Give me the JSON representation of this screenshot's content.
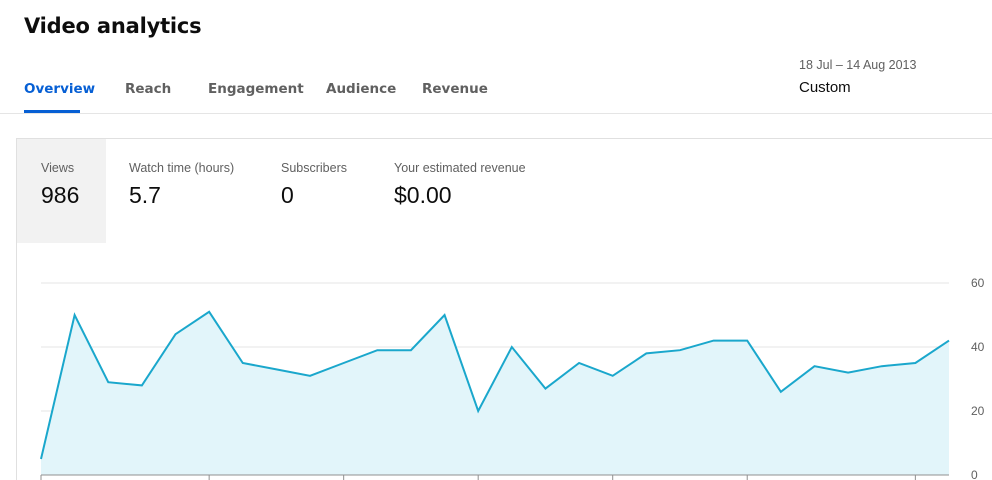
{
  "page": {
    "title": "Video analytics"
  },
  "tabs": [
    {
      "label": "Overview",
      "active": true
    },
    {
      "label": "Reach",
      "active": false
    },
    {
      "label": "Engagement",
      "active": false
    },
    {
      "label": "Audience",
      "active": false
    },
    {
      "label": "Revenue",
      "active": false
    }
  ],
  "period": {
    "date_range": "18 Jul – 14 Aug 2013",
    "selected": "Custom"
  },
  "metrics": [
    {
      "label": "Views",
      "value": "986",
      "selected": true
    },
    {
      "label": "Watch time (hours)",
      "value": "5.7",
      "selected": false
    },
    {
      "label": "Subscribers",
      "value": "0",
      "selected": false
    },
    {
      "label": "Your estimated revenue",
      "value": "$0.00",
      "selected": false
    }
  ],
  "colors": {
    "accent": "#065fd4",
    "line": "#1aa7cc",
    "area": "#e2f5fa",
    "grid": "#e5e5e5",
    "selected_metric_bg": "#f2f2f2"
  },
  "chart_data": {
    "type": "area",
    "x": [
      1,
      2,
      3,
      4,
      5,
      6,
      7,
      8,
      9,
      10,
      11,
      12,
      13,
      14,
      15,
      16,
      17,
      18,
      19,
      20,
      21,
      22,
      23,
      24,
      25,
      26,
      27,
      28
    ],
    "series": [
      {
        "values": [
          5,
          50,
          29,
          28,
          44,
          51,
          35,
          33,
          31,
          35,
          39,
          39,
          50,
          20,
          40,
          27,
          35,
          31,
          38,
          39,
          42,
          42,
          26,
          34,
          32,
          34,
          35,
          42
        ]
      }
    ],
    "y_ticks": [
      "0",
      "20",
      "40",
      "60"
    ],
    "ylim": [
      0,
      60
    ],
    "grid": true,
    "y_axis_position": "right"
  }
}
